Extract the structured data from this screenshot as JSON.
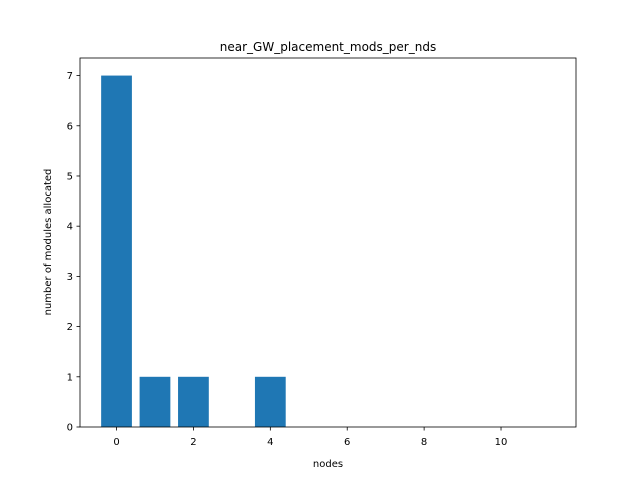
{
  "chart_data": {
    "type": "bar",
    "title": "near_GW_placement_mods_per_nds",
    "xlabel": "nodes",
    "ylabel": "number of modules allocated",
    "x": [
      0,
      1,
      2,
      3,
      4,
      5,
      6,
      7,
      8,
      9,
      10,
      11
    ],
    "values": [
      7,
      1,
      1,
      0,
      1,
      0,
      0,
      0,
      0,
      0,
      0,
      0
    ],
    "xlim": [
      -0.95,
      11.95
    ],
    "ylim": [
      0,
      7.35
    ],
    "xticks": [
      "0",
      "2",
      "4",
      "6",
      "8",
      "10"
    ],
    "yticks": [
      "0",
      "1",
      "2",
      "3",
      "4",
      "5",
      "6",
      "7"
    ],
    "bar_color": "#1f77b4",
    "grid": false
  }
}
